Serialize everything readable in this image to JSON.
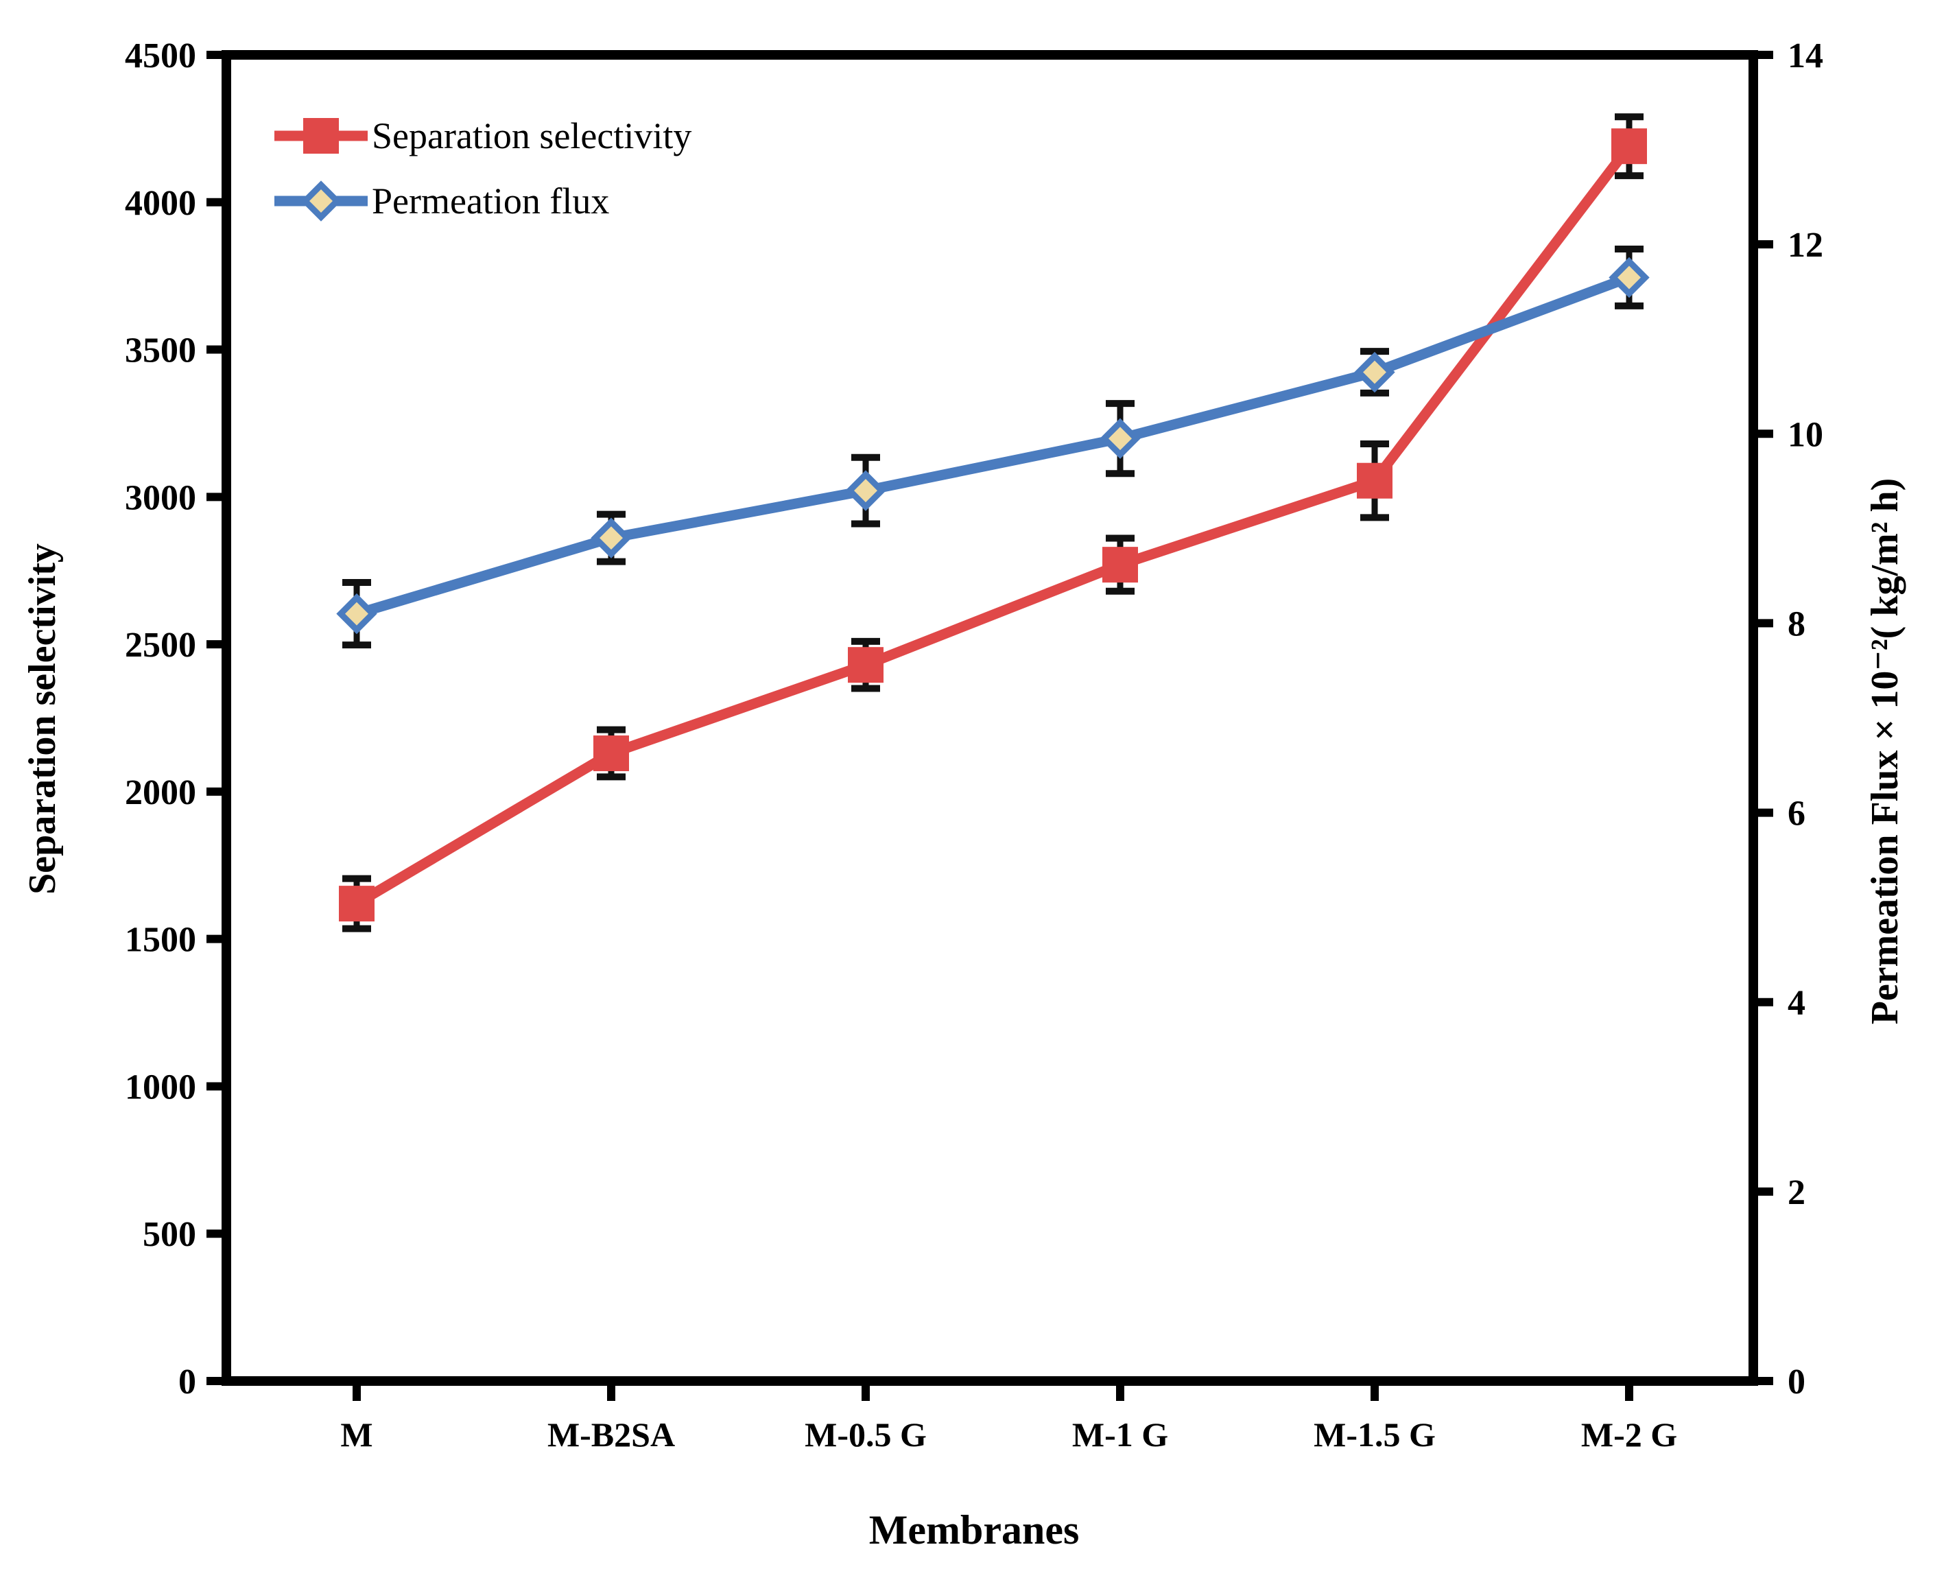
{
  "figure": {
    "background": "#ffffff",
    "frame_color": "#000000",
    "error_bar_color": "#111111"
  },
  "chart_data": {
    "type": "line",
    "categories": [
      "M",
      "M-B2SA",
      "M-0.5 G",
      "M-1 G",
      "M-1.5 G",
      "M-2 G"
    ],
    "xlabel": "Membranes",
    "axes": {
      "left": {
        "label": "Separation selectivity",
        "min": 0,
        "max": 4500,
        "step": 500
      },
      "right": {
        "label": "Permeation Flux × 10⁻²( kg/m² h)",
        "min": 0,
        "max": 14,
        "step": 2
      }
    },
    "series": [
      {
        "name": "Separation selectivity",
        "axis": "left",
        "marker": "square",
        "color": "#E04848",
        "marker_fill": "#E04848",
        "values": [
          1620,
          2130,
          2430,
          2770,
          3055,
          4190
        ],
        "errors": [
          85,
          80,
          80,
          90,
          125,
          100
        ]
      },
      {
        "name": "Permeation flux",
        "axis": "right",
        "marker": "diamond",
        "color": "#4B7CBF",
        "marker_fill": "#F0DBA3",
        "values": [
          8.1,
          8.9,
          9.4,
          9.95,
          10.65,
          11.65
        ],
        "errors": [
          0.33,
          0.25,
          0.35,
          0.37,
          0.22,
          0.3
        ]
      }
    ],
    "legend": {
      "position": "top-left",
      "entries": [
        "Separation selectivity",
        "Permeation flux"
      ]
    }
  }
}
